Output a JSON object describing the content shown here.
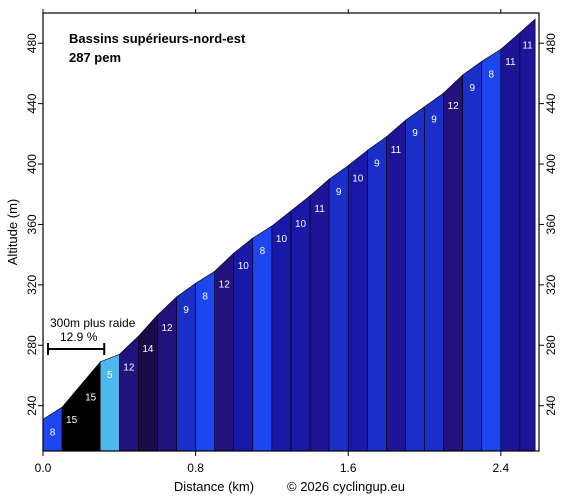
{
  "chart_data": {
    "type": "area",
    "title": "Bassins supérieurs-nord-est",
    "subtitle": "287 pem",
    "xlabel": "Distance (km)",
    "ylabel": "Altitude (m)",
    "credit": "© 2026 cyclingup.eu",
    "xlim": [
      0,
      2.6
    ],
    "ylim": [
      210,
      500
    ],
    "x_ticks": [
      0.0,
      0.8,
      1.6,
      2.4
    ],
    "x_tick_labels": [
      "0.0",
      "0.8",
      "1.6",
      "2.4"
    ],
    "y_ticks": [
      240,
      280,
      320,
      360,
      400,
      440,
      480
    ],
    "y_tick_labels": [
      "240",
      "280",
      "320",
      "360",
      "400",
      "440",
      "480"
    ],
    "grid": false,
    "annotation": {
      "label": "300m plus raide",
      "value": "12.9 %",
      "x_start": 0.0,
      "x_end": 0.3
    },
    "segments": [
      {
        "x0": 0.0,
        "x1": 0.1,
        "y0": 231.0,
        "y1": 239.0,
        "label": "8",
        "color": "#1E46F0"
      },
      {
        "x0": 0.1,
        "x1": 0.2,
        "y0": 239.0,
        "y1": 254.0,
        "label": "15",
        "color": "#000000"
      },
      {
        "x0": 0.2,
        "x1": 0.3,
        "y0": 254.0,
        "y1": 269.0,
        "label": "15",
        "color": "#000000"
      },
      {
        "x0": 0.3,
        "x1": 0.4,
        "y0": 269.0,
        "y1": 274.0,
        "label": "5",
        "color": "#4CB8EE"
      },
      {
        "x0": 0.4,
        "x1": 0.5,
        "y0": 274.0,
        "y1": 286.0,
        "label": "12",
        "color": "#22127E"
      },
      {
        "x0": 0.5,
        "x1": 0.6,
        "y0": 286.0,
        "y1": 300.0,
        "label": "14",
        "color": "#1A0A4A"
      },
      {
        "x0": 0.6,
        "x1": 0.7,
        "y0": 300.0,
        "y1": 312.0,
        "label": "12",
        "color": "#22127E"
      },
      {
        "x0": 0.7,
        "x1": 0.8,
        "y0": 312.0,
        "y1": 321.0,
        "label": "9",
        "color": "#1A2EC8"
      },
      {
        "x0": 0.8,
        "x1": 0.9,
        "y0": 321.0,
        "y1": 329.0,
        "label": "8",
        "color": "#1E46F0"
      },
      {
        "x0": 0.9,
        "x1": 1.0,
        "y0": 329.0,
        "y1": 341.0,
        "label": "12",
        "color": "#22127E"
      },
      {
        "x0": 1.0,
        "x1": 1.1,
        "y0": 341.0,
        "y1": 351.0,
        "label": "10",
        "color": "#1A18A8"
      },
      {
        "x0": 1.1,
        "x1": 1.2,
        "y0": 351.0,
        "y1": 359.0,
        "label": "8",
        "color": "#1E46F0"
      },
      {
        "x0": 1.2,
        "x1": 1.3,
        "y0": 359.0,
        "y1": 369.0,
        "label": "10",
        "color": "#1A18A8"
      },
      {
        "x0": 1.3,
        "x1": 1.4,
        "y0": 369.0,
        "y1": 379.0,
        "label": "10",
        "color": "#1A18A8"
      },
      {
        "x0": 1.4,
        "x1": 1.5,
        "y0": 379.0,
        "y1": 390.0,
        "label": "11",
        "color": "#1E1498"
      },
      {
        "x0": 1.5,
        "x1": 1.6,
        "y0": 390.0,
        "y1": 399.0,
        "label": "9",
        "color": "#1A2EC8"
      },
      {
        "x0": 1.6,
        "x1": 1.7,
        "y0": 399.0,
        "y1": 409.0,
        "label": "10",
        "color": "#1A18A8"
      },
      {
        "x0": 1.7,
        "x1": 1.8,
        "y0": 409.0,
        "y1": 418.0,
        "label": "9",
        "color": "#1A2EC8"
      },
      {
        "x0": 1.8,
        "x1": 1.9,
        "y0": 418.0,
        "y1": 429.0,
        "label": "11",
        "color": "#1E1498"
      },
      {
        "x0": 1.9,
        "x1": 2.0,
        "y0": 429.0,
        "y1": 438.0,
        "label": "9",
        "color": "#1A2EC8"
      },
      {
        "x0": 2.0,
        "x1": 2.1,
        "y0": 438.0,
        "y1": 447.0,
        "label": "9",
        "color": "#1A2EC8"
      },
      {
        "x0": 2.1,
        "x1": 2.2,
        "y0": 447.0,
        "y1": 459.0,
        "label": "12",
        "color": "#22127E"
      },
      {
        "x0": 2.2,
        "x1": 2.3,
        "y0": 459.0,
        "y1": 468.0,
        "label": "9",
        "color": "#1A2EC8"
      },
      {
        "x0": 2.3,
        "x1": 2.4,
        "y0": 468.0,
        "y1": 476.0,
        "label": "8",
        "color": "#1E46F0"
      },
      {
        "x0": 2.4,
        "x1": 2.5,
        "y0": 476.0,
        "y1": 487.0,
        "label": "11",
        "color": "#1E1498"
      },
      {
        "x0": 2.5,
        "x1": 2.58,
        "y0": 487.0,
        "y1": 496.0,
        "label": "11",
        "color": "#1E1498"
      }
    ]
  }
}
